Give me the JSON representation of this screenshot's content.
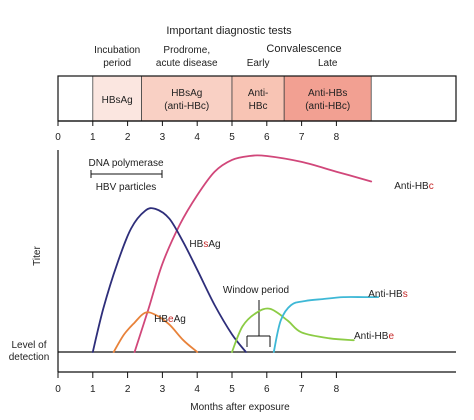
{
  "chart_data": {
    "type": "line",
    "xlabel": "Months after exposure",
    "ylabel": "Titer",
    "xlim": [
      0,
      10
    ],
    "x_ticks": [
      "0",
      "1",
      "2",
      "3",
      "4",
      "5",
      "6",
      "7",
      "8"
    ],
    "grid": false,
    "diagnostic_panel": {
      "title": "Important diagnostic tests",
      "phases": [
        {
          "name": "Incubation",
          "name2": "period",
          "test": "HBsAg",
          "test2": "",
          "x0": 1,
          "x1": 2.4,
          "color": "#fbe6e0"
        },
        {
          "name": "Prodrome,",
          "name2": "acute disease",
          "test": "HBsAg",
          "test2": "(anti-HBc)",
          "x0": 2.4,
          "x1": 5,
          "color": "#f9d0c4"
        },
        {
          "name": "Early",
          "name2": "",
          "test": "Anti-",
          "test2": "HBc",
          "x0": 5,
          "x1": 6.5,
          "color": "#f8c4b4"
        },
        {
          "name": "Late",
          "name2": "",
          "test": "Anti-HBs",
          "test2": "(anti-HBc)",
          "x0": 6.5,
          "x1": 9,
          "color": "#f2a092"
        }
      ],
      "convalescence_label": "Convalescence"
    },
    "annotations": {
      "dna_polymerase": "DNA polymerase",
      "hbv_particles": "HBV particles",
      "window_period": "Window period",
      "level_of_detection_1": "Level of",
      "level_of_detection_2": "detection"
    },
    "series": [
      {
        "name": "Anti-HBc",
        "color": "#d1477a",
        "x": [
          2.2,
          2.6,
          3.0,
          3.5,
          4.0,
          4.5,
          5.0,
          5.5,
          6.0,
          7.0,
          8.0,
          9.0
        ],
        "y": [
          0,
          0.22,
          0.45,
          0.65,
          0.8,
          0.92,
          0.98,
          1.0,
          1.0,
          0.97,
          0.92,
          0.87
        ]
      },
      {
        "name": "HBsAg",
        "color": "#2e2e7a",
        "x": [
          1.0,
          1.3,
          1.7,
          2.1,
          2.5,
          2.8,
          3.2,
          3.6,
          4.0,
          4.5,
          5.0,
          5.4
        ],
        "y": [
          0,
          0.22,
          0.45,
          0.63,
          0.72,
          0.73,
          0.68,
          0.56,
          0.42,
          0.24,
          0.09,
          0
        ]
      },
      {
        "name": "HBeAg",
        "color": "#e8823a",
        "x": [
          1.6,
          1.9,
          2.2,
          2.5,
          2.8,
          3.2,
          3.6,
          4.0
        ],
        "y": [
          0,
          0.09,
          0.15,
          0.2,
          0.19,
          0.14,
          0.06,
          0
        ]
      },
      {
        "name": "Anti-HBe",
        "color": "#8ccc45",
        "x": [
          5.0,
          5.3,
          5.7,
          6.1,
          6.6,
          7.0,
          7.8,
          8.5
        ],
        "y": [
          0,
          0.13,
          0.2,
          0.22,
          0.16,
          0.1,
          0.07,
          0.06
        ]
      },
      {
        "name": "Anti-HBs",
        "color": "#3eb8d6",
        "x": [
          6.2,
          6.4,
          6.7,
          7.1,
          7.6,
          8.2,
          8.8,
          9.2
        ],
        "y": [
          0,
          0.16,
          0.24,
          0.26,
          0.27,
          0.28,
          0.28,
          0.28
        ]
      }
    ],
    "series_labels": [
      {
        "pre": "Anti-HB",
        "post": "c"
      },
      {
        "pre": "HB",
        "mid": "s",
        "post": "Ag"
      },
      {
        "pre": "HB",
        "mid": "e",
        "post": "Ag"
      },
      {
        "pre": "Anti-HB",
        "post": "e"
      },
      {
        "pre": "Anti-HB",
        "post": "s"
      }
    ],
    "accent_color": "#c62828"
  }
}
